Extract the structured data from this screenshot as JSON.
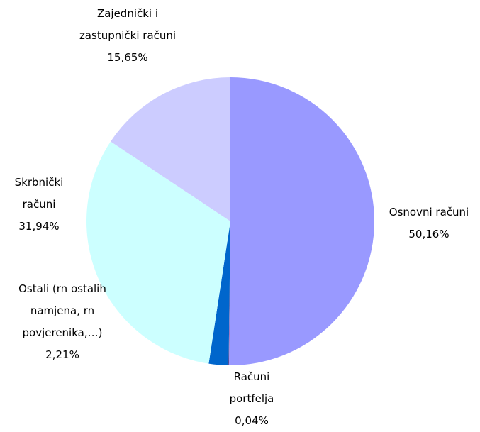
{
  "chart_data": {
    "type": "pie",
    "categories": [
      "Osnovni računi",
      "Računi portfelja",
      "Ostali (rn ostalih namjena, rn povjerenika,…)",
      "Skrbnički računi",
      "Zajednički i zastupnički računi"
    ],
    "values": [
      50.16,
      0.04,
      2.21,
      31.94,
      15.65
    ],
    "value_labels": [
      "50,16%",
      "0,04%",
      "2,21%",
      "31,94%",
      "15,65%"
    ],
    "colors": [
      "#9999ff",
      "#993366",
      "#0066cc",
      "#ccffff",
      "#ccccff"
    ]
  }
}
